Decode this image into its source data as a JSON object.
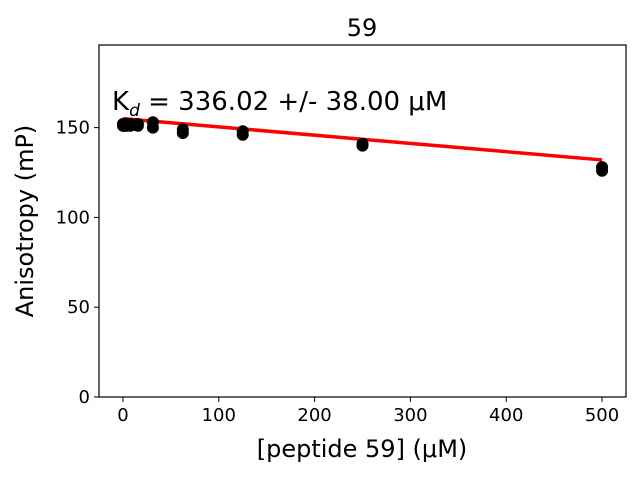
{
  "chart_data": {
    "type": "scatter",
    "title": "59",
    "xlabel": "[peptide 59] (μM)",
    "ylabel": "Anisotropy (mP)",
    "xlim": [
      -25,
      525
    ],
    "ylim": [
      0,
      196
    ],
    "xticks": [
      0,
      100,
      200,
      300,
      400,
      500
    ],
    "yticks": [
      0,
      50,
      100,
      150
    ],
    "grid": false,
    "annotation": {
      "prefix": "K",
      "subscript": "d",
      "text": " = 336.02 +/- 38.00 μM"
    },
    "series": [
      {
        "type": "scatter",
        "color": "#000000",
        "x": [
          0,
          0,
          0.98,
          0.98,
          1.95,
          1.95,
          3.9,
          3.9,
          7.8,
          7.8,
          15.6,
          15.6,
          31.25,
          31.25,
          62.5,
          62.5,
          125,
          125,
          250,
          250,
          500,
          500
        ],
        "y": [
          151,
          152,
          152,
          151,
          151,
          152,
          152,
          151,
          151,
          152,
          152,
          151,
          150,
          153,
          147,
          149,
          146,
          148,
          140,
          141,
          126,
          128
        ]
      },
      {
        "type": "line",
        "color": "#ff0000",
        "x": [
          0,
          500
        ],
        "y": [
          155,
          132
        ]
      }
    ]
  }
}
